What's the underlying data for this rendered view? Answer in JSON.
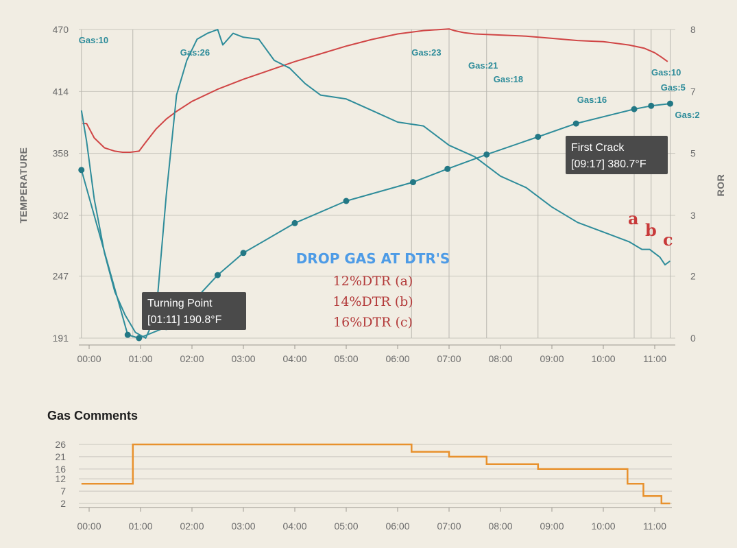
{
  "chart_data": [
    {
      "type": "line",
      "title": "",
      "ylabel": "TEMPERATURE",
      "y2label": "ROR",
      "ylim": [
        191,
        470
      ],
      "y2lim": [
        0,
        8
      ],
      "yticks": [
        191,
        247,
        302,
        358,
        414,
        470
      ],
      "y2ticks": [
        0,
        2,
        3,
        5,
        7,
        8
      ],
      "xticks": [
        "00:00",
        "01:00",
        "02:00",
        "03:00",
        "04:00",
        "05:00",
        "06:00",
        "07:00",
        "08:00",
        "09:00",
        "10:00",
        "11:00"
      ],
      "grid": true,
      "series": [
        {
          "color": "#d04545",
          "axis": "left",
          "x": [
            -0.13,
            -0.05,
            0.1,
            0.3,
            0.5,
            0.65,
            0.8,
            0.97,
            1.1,
            1.3,
            1.5,
            1.7,
            2.0,
            2.5,
            3.0,
            3.5,
            4.0,
            4.5,
            5.0,
            5.5,
            6.0,
            6.5,
            7.0,
            7.1,
            7.3,
            7.5,
            8.0,
            8.5,
            9.0,
            9.5,
            10.0,
            10.5,
            10.8,
            11.0,
            11.13,
            11.25
          ],
          "y": [
            385,
            385,
            372,
            363,
            360,
            359,
            359,
            360,
            368,
            380,
            389,
            396,
            405,
            416,
            425,
            433,
            441,
            448,
            455,
            461,
            466,
            469,
            470.5,
            469,
            467,
            466,
            465,
            464,
            462,
            460,
            459,
            456,
            453,
            449,
            445,
            441
          ]
        },
        {
          "color": "#2e8c9a",
          "axis": "left",
          "points_marked": true,
          "x": [
            -0.15,
            0.75,
            0.97,
            1.5,
            2.0,
            2.5,
            3.0,
            4.0,
            5.0,
            6.3,
            6.97,
            7.73,
            8.73,
            9.47,
            10.6,
            10.93,
            11.3
          ],
          "y": [
            343,
            194,
            191,
            201,
            223,
            248,
            268,
            295,
            315,
            332,
            344,
            357,
            373,
            385,
            398,
            401,
            403
          ]
        },
        {
          "color": "#2e8c9a",
          "axis": "right",
          "x": [
            -0.15,
            -0.05,
            0.1,
            0.3,
            0.5,
            0.7,
            0.9,
            1.1,
            1.3,
            1.5,
            1.7,
            1.9,
            2.1,
            2.3,
            2.5,
            2.6,
            2.8,
            3.0,
            3.3,
            3.6,
            3.9,
            4.2,
            4.5,
            5.0,
            5.5,
            6.0,
            6.5,
            7.0,
            7.5,
            8.0,
            8.5,
            9.0,
            9.5,
            10.0,
            10.5,
            10.75,
            10.9,
            11.1,
            11.2,
            11.3
          ],
          "y": [
            5.9,
            5.1,
            3.6,
            2.2,
            1.2,
            0.6,
            0.15,
            0.0,
            0.6,
            3.7,
            6.3,
            7.2,
            7.75,
            7.9,
            8.0,
            7.6,
            7.9,
            7.8,
            7.75,
            7.2,
            7.0,
            6.6,
            6.3,
            6.2,
            5.9,
            5.6,
            5.5,
            5.0,
            4.7,
            4.2,
            3.9,
            3.4,
            3.0,
            2.75,
            2.5,
            2.3,
            2.3,
            2.1,
            1.9,
            2.0
          ]
        }
      ],
      "gas_events": [
        {
          "label": "Gas:10",
          "x": -0.15
        },
        {
          "label": "Gas:26",
          "x": 0.85
        },
        {
          "label": "Gas:23",
          "x": 6.27
        },
        {
          "label": "Gas:21",
          "x": 7.0
        },
        {
          "label": "Gas:18",
          "x": 7.73
        },
        {
          "label": "Gas:16",
          "x": 8.73
        },
        {
          "label": "Gas:10",
          "x": 10.6
        },
        {
          "label": "Gas:5",
          "x": 10.93
        },
        {
          "label": "Gas:2",
          "x": 11.3
        }
      ],
      "annotations": [
        {
          "title": "Turning Point",
          "detail": "[01:11] 190.8°F"
        },
        {
          "title": "First Crack",
          "detail": "[09:17] 380.7°F"
        }
      ],
      "markers": [
        "a",
        "b",
        "c"
      ]
    },
    {
      "type": "line",
      "title": "Gas Comments",
      "ylim": [
        0,
        26
      ],
      "yticks": [
        26,
        21,
        16,
        12,
        7,
        2
      ],
      "xticks": [
        "00:00",
        "01:00",
        "02:00",
        "03:00",
        "04:00",
        "05:00",
        "06:00",
        "07:00",
        "08:00",
        "09:00",
        "10:00",
        "11:00"
      ],
      "grid": true,
      "series": [
        {
          "color": "#e8912d",
          "step": true,
          "x": [
            -0.15,
            0.85,
            6.27,
            7.0,
            7.73,
            8.73,
            10.47,
            10.78,
            11.13,
            11.3
          ],
          "y": [
            10,
            26,
            23,
            21,
            18,
            16,
            10,
            5,
            2,
            2
          ]
        }
      ]
    }
  ],
  "drop_note": {
    "title": "DROP GAS AT DTR'S",
    "lines": [
      "12%DTR (a)",
      "14%DTR (b)",
      "16%DTR (c)"
    ]
  }
}
